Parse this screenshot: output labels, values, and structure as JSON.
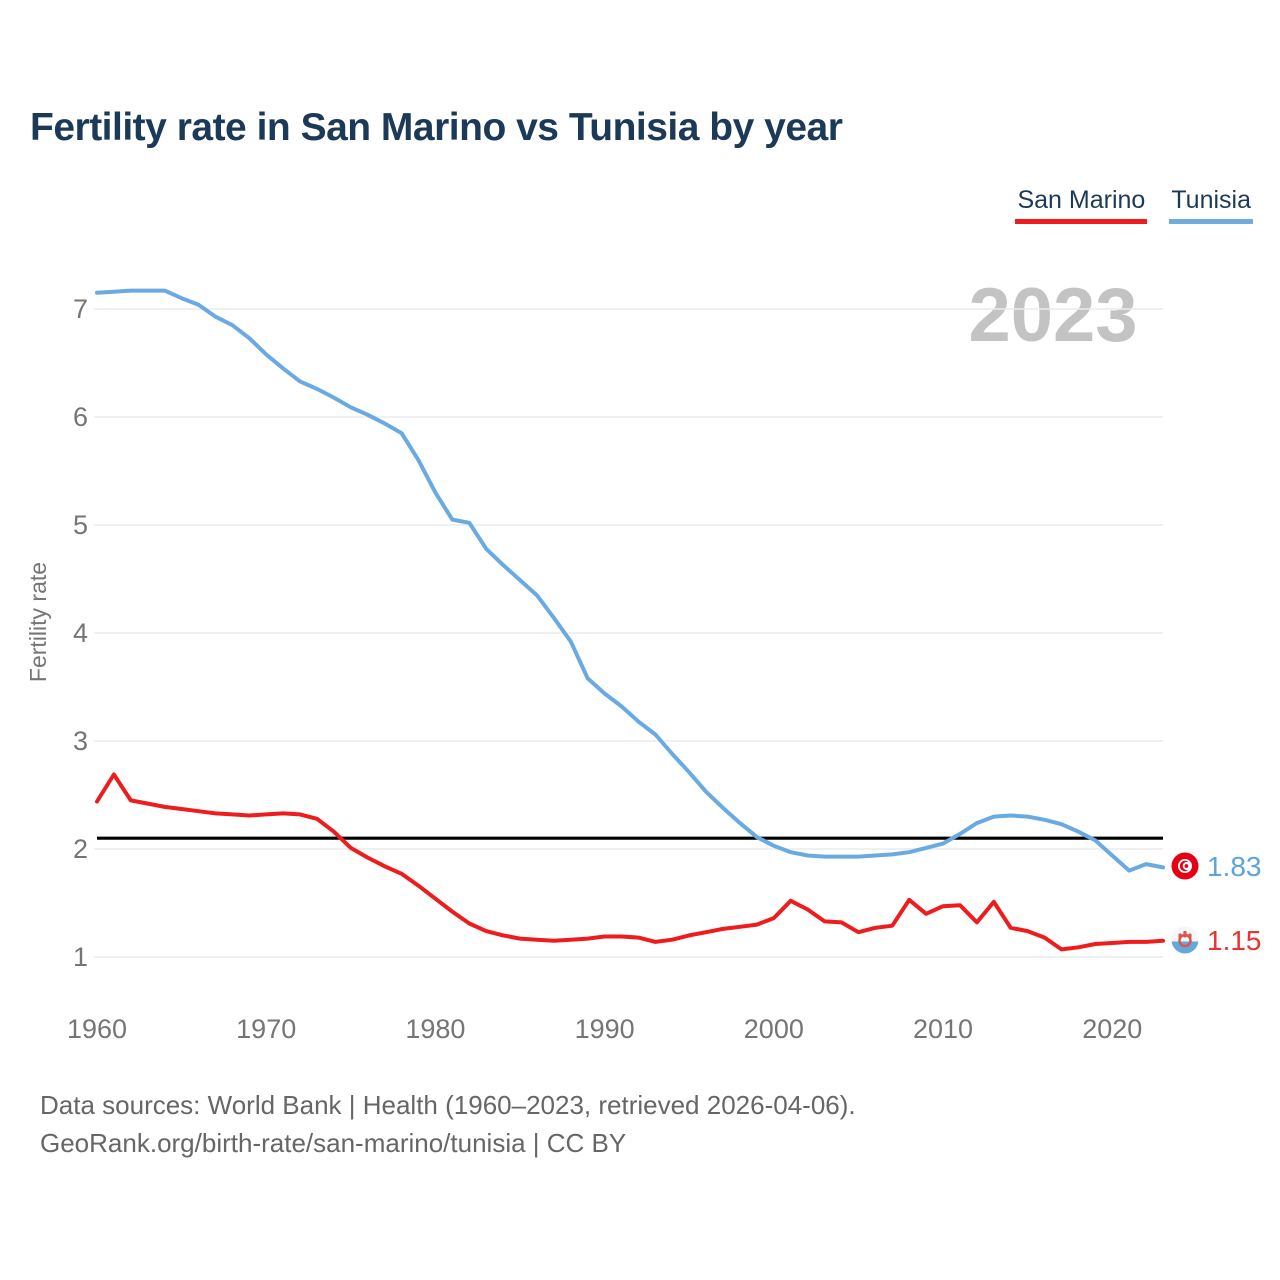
{
  "page": {
    "title": "Fertility rate in San Marino vs Tunisia by year",
    "watermark_year": "2023",
    "footer": {
      "line1": "Data sources: World Bank | Health (1960–2023, retrieved 2026-04-06).",
      "line2": "GeoRank.org/birth-rate/san-marino/tunisia | CC BY"
    }
  },
  "legend": {
    "items": [
      {
        "label": "San Marino",
        "color": "#ee1c1c"
      },
      {
        "label": "Tunisia",
        "color": "#6fade0"
      }
    ]
  },
  "chart_data": {
    "type": "line",
    "title": "Fertility rate in San Marino vs Tunisia by year",
    "xlabel": "",
    "ylabel": "Fertility rate",
    "xlim": [
      1960,
      2023
    ],
    "ylim": [
      0.5,
      7.5
    ],
    "x_ticks": [
      1960,
      1970,
      1980,
      1990,
      2000,
      2010,
      2020
    ],
    "y_ticks": [
      1,
      2,
      3,
      4,
      5,
      6,
      7
    ],
    "grid": "horizontal",
    "legend_position": "top-right",
    "watermark": "2023",
    "reference_line": {
      "value": 2.1,
      "color": "#000000"
    },
    "x": [
      1960,
      1961,
      1962,
      1963,
      1964,
      1965,
      1966,
      1967,
      1968,
      1969,
      1970,
      1971,
      1972,
      1973,
      1974,
      1975,
      1976,
      1977,
      1978,
      1979,
      1980,
      1981,
      1982,
      1983,
      1984,
      1985,
      1986,
      1987,
      1988,
      1989,
      1990,
      1991,
      1992,
      1993,
      1994,
      1995,
      1996,
      1997,
      1998,
      1999,
      2000,
      2001,
      2002,
      2003,
      2004,
      2005,
      2006,
      2007,
      2008,
      2009,
      2010,
      2011,
      2012,
      2013,
      2014,
      2015,
      2016,
      2017,
      2018,
      2019,
      2020,
      2021,
      2022,
      2023
    ],
    "series": [
      {
        "name": "San Marino",
        "color": "#ee1c1c",
        "end_label": "1.15",
        "end_value": 1.15,
        "values": [
          2.44,
          2.69,
          2.45,
          2.42,
          2.39,
          2.37,
          2.35,
          2.33,
          2.32,
          2.31,
          2.32,
          2.33,
          2.32,
          2.28,
          2.16,
          2.01,
          1.92,
          1.84,
          1.77,
          1.66,
          1.54,
          1.42,
          1.31,
          1.24,
          1.2,
          1.17,
          1.16,
          1.15,
          1.16,
          1.17,
          1.19,
          1.19,
          1.18,
          1.14,
          1.16,
          1.2,
          1.23,
          1.26,
          1.28,
          1.3,
          1.36,
          1.52,
          1.44,
          1.33,
          1.32,
          1.23,
          1.27,
          1.29,
          1.53,
          1.4,
          1.47,
          1.48,
          1.32,
          1.51,
          1.27,
          1.24,
          1.18,
          1.07,
          1.09,
          1.12,
          1.13,
          1.14,
          1.14,
          1.15
        ]
      },
      {
        "name": "Tunisia",
        "color": "#6aaae3",
        "end_label": "1.83",
        "end_value": 1.83,
        "values": [
          7.15,
          7.16,
          7.17,
          7.17,
          7.17,
          7.1,
          7.04,
          6.93,
          6.85,
          6.73,
          6.58,
          6.45,
          6.33,
          6.26,
          6.18,
          6.09,
          6.02,
          5.94,
          5.85,
          5.6,
          5.3,
          5.05,
          5.02,
          4.78,
          4.63,
          4.49,
          4.35,
          4.14,
          3.92,
          3.58,
          3.44,
          3.32,
          3.18,
          3.06,
          2.88,
          2.71,
          2.53,
          2.38,
          2.24,
          2.11,
          2.03,
          1.97,
          1.94,
          1.93,
          1.93,
          1.93,
          1.94,
          1.95,
          1.97,
          2.01,
          2.05,
          2.14,
          2.24,
          2.3,
          2.31,
          2.3,
          2.27,
          2.23,
          2.16,
          2.08,
          1.94,
          1.8,
          1.86,
          1.83
        ]
      }
    ]
  }
}
